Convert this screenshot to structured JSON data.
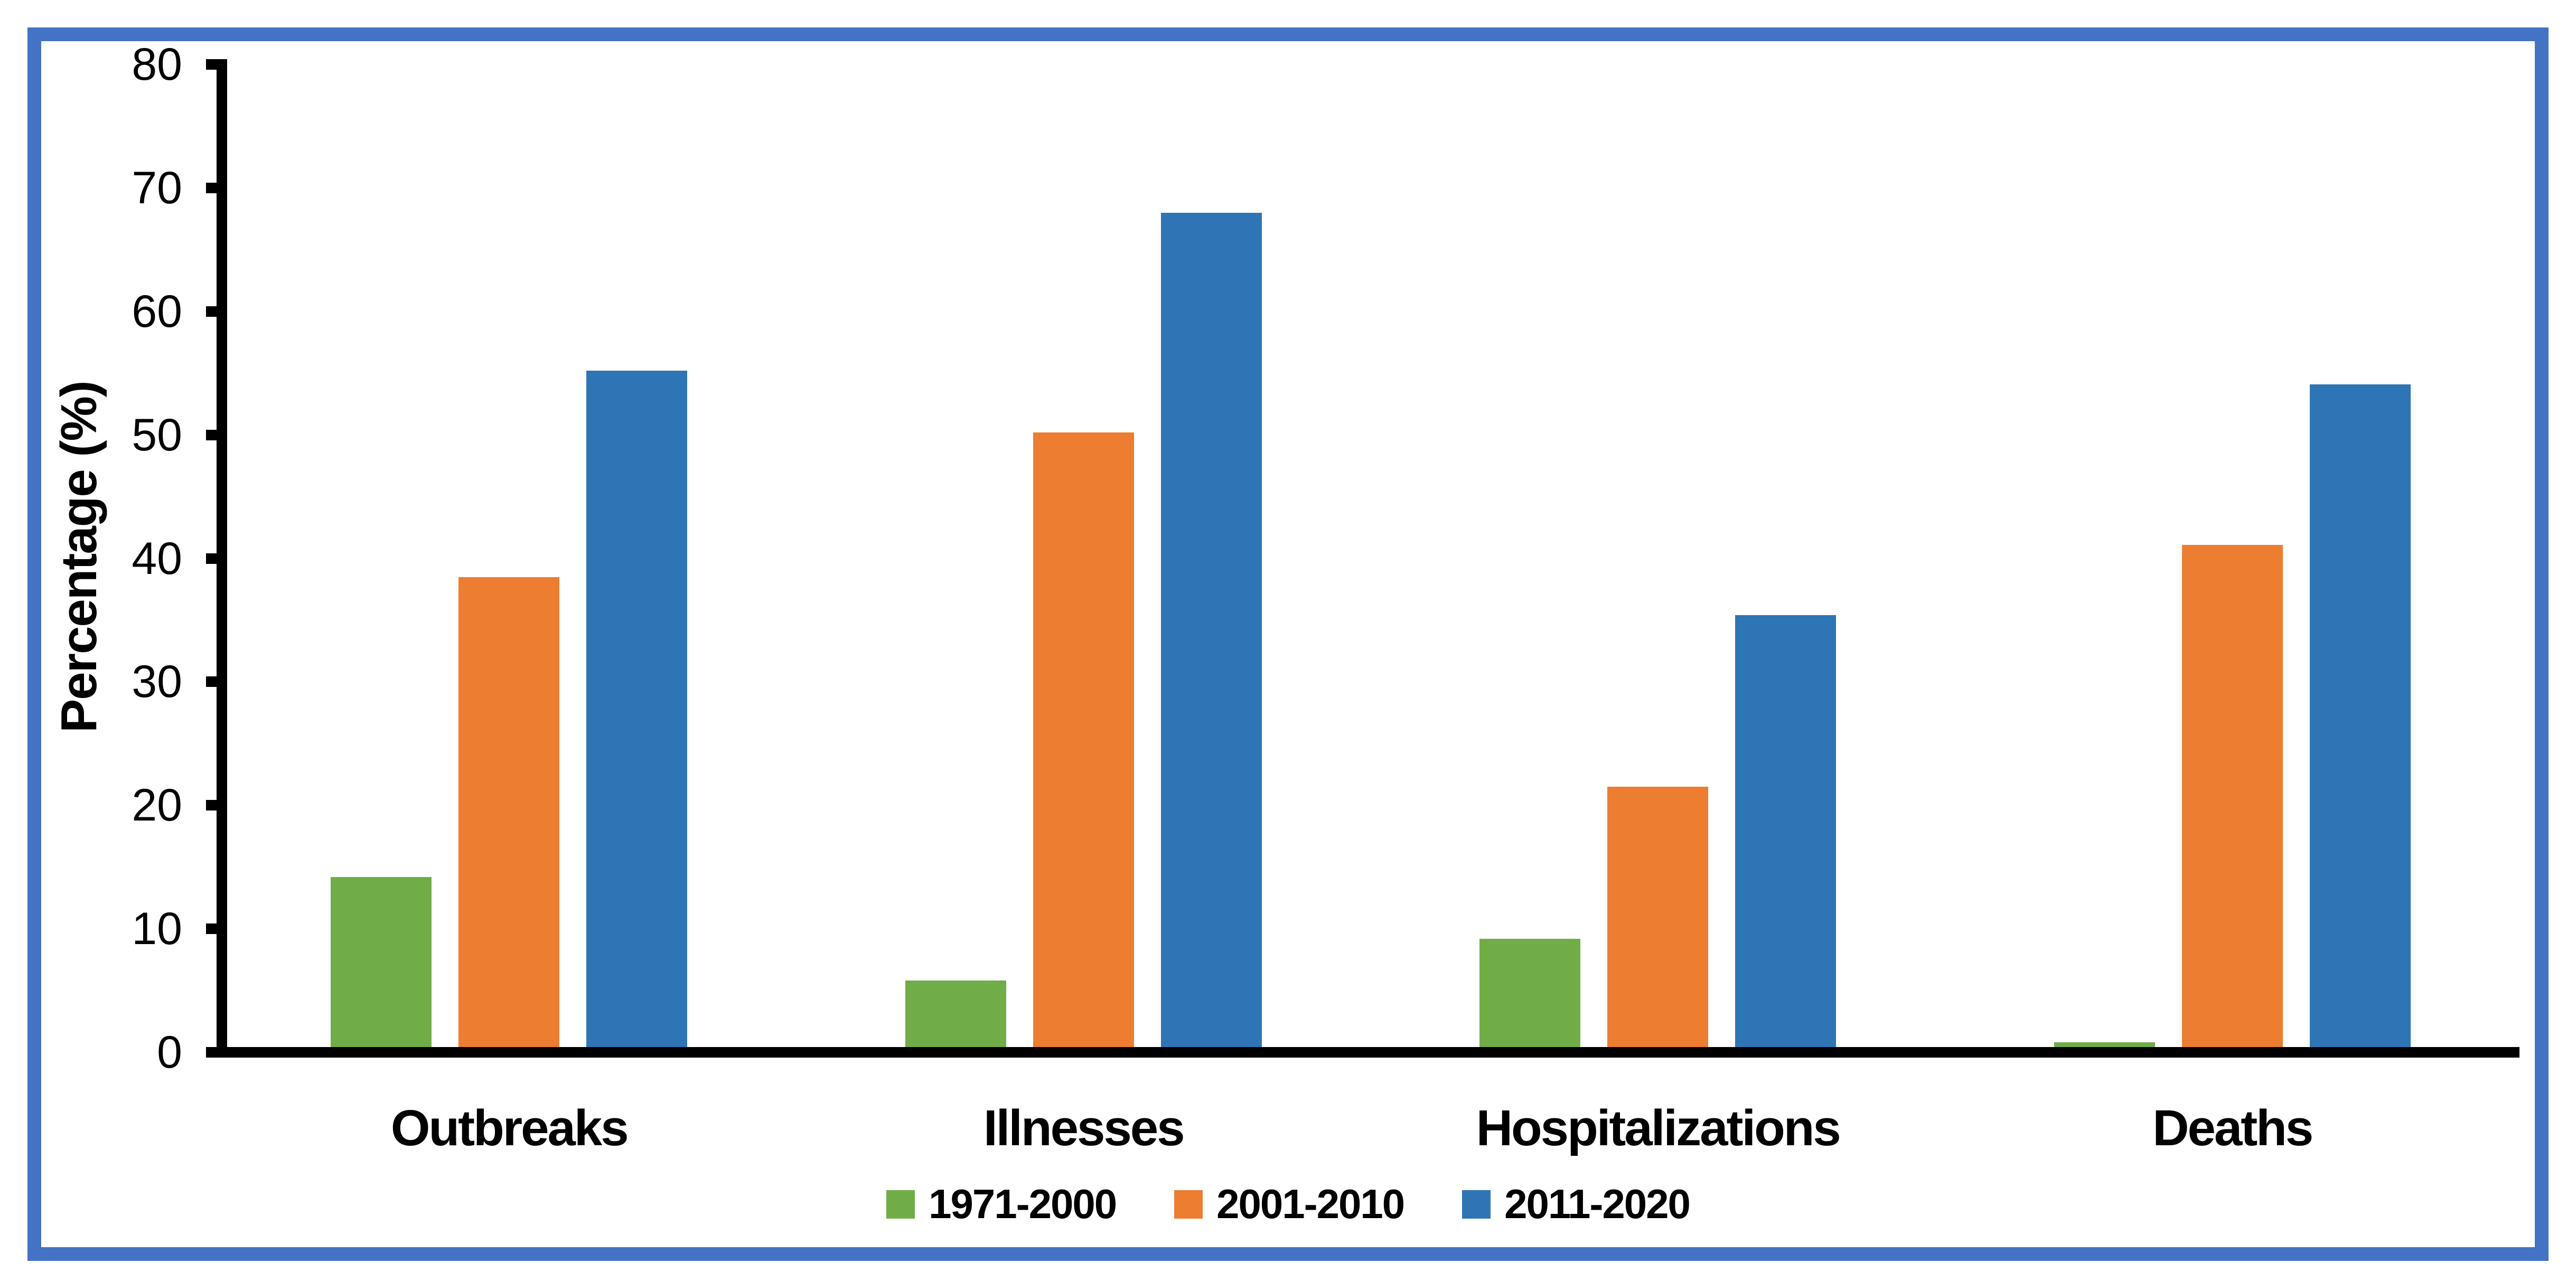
{
  "chart_data": {
    "type": "bar",
    "title": "",
    "categories": [
      "Outbreaks",
      "Illnesses",
      "Hospitalizations",
      "Deaths"
    ],
    "series": [
      {
        "name": "1971-2000",
        "color": "#70AD47",
        "values": [
          14.2,
          5.8,
          9.2,
          0.8
        ]
      },
      {
        "name": "2001-2010",
        "color": "#ED7D31",
        "values": [
          38.5,
          50.2,
          21.5,
          41.1
        ]
      },
      {
        "name": "2011-2020",
        "color": "#2E75B6",
        "values": [
          55.2,
          68.0,
          35.4,
          54.1
        ]
      }
    ],
    "xlabel": "",
    "ylabel": "Percentage (%)",
    "ylim": [
      0,
      80
    ],
    "yticks": [
      0,
      10,
      20,
      30,
      40,
      50,
      60,
      70,
      80
    ],
    "grid": false,
    "legend_position": "bottom"
  },
  "frame": {
    "border_color": "#4472C4",
    "axis_color": "#000000"
  }
}
